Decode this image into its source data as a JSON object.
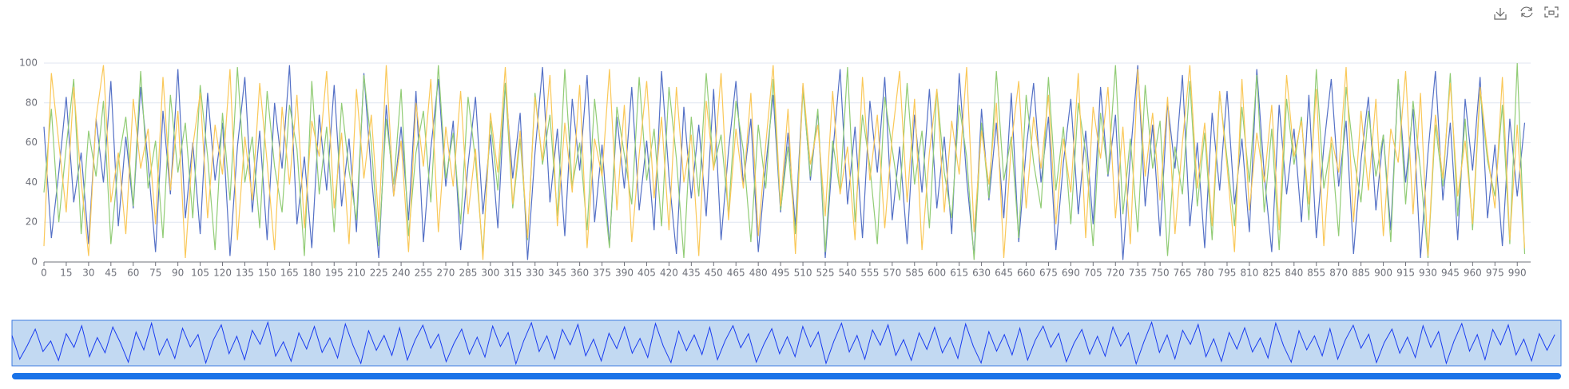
{
  "chart_data": {
    "type": "line",
    "xlim": [
      0,
      999
    ],
    "xticks": [
      0,
      15,
      30,
      45,
      60,
      75,
      90,
      105,
      120,
      135,
      150,
      165,
      180,
      195,
      210,
      225,
      240,
      255,
      270,
      285,
      300,
      315,
      330,
      345,
      360,
      375,
      390,
      405,
      420,
      435,
      450,
      465,
      480,
      495,
      510,
      525,
      540,
      555,
      570,
      585,
      600,
      615,
      630,
      645,
      660,
      675,
      690,
      705,
      720,
      735,
      750,
      765,
      780,
      795,
      810,
      825,
      840,
      855,
      870,
      885,
      900,
      915,
      930,
      945,
      960,
      975,
      990
    ],
    "ylim": [
      0,
      100
    ],
    "yticks": [
      0,
      20,
      40,
      60,
      80,
      100
    ],
    "grid": true,
    "x": [
      0,
      5,
      10,
      15,
      20,
      25,
      30,
      35,
      40,
      45,
      50,
      55,
      60,
      65,
      70,
      75,
      80,
      85,
      90,
      95,
      100,
      105,
      110,
      115,
      120,
      125,
      130,
      135,
      140,
      145,
      150,
      155,
      160,
      165,
      170,
      175,
      180,
      185,
      190,
      195,
      200,
      205,
      210,
      215,
      220,
      225,
      230,
      235,
      240,
      245,
      250,
      255,
      260,
      265,
      270,
      275,
      280,
      285,
      290,
      295,
      300,
      305,
      310,
      315,
      320,
      325,
      330,
      335,
      340,
      345,
      350,
      355,
      360,
      365,
      370,
      375,
      380,
      385,
      390,
      395,
      400,
      405,
      410,
      415,
      420,
      425,
      430,
      435,
      440,
      445,
      450,
      455,
      460,
      465,
      470,
      475,
      480,
      485,
      490,
      495,
      500,
      505,
      510,
      515,
      520,
      525,
      530,
      535,
      540,
      545,
      550,
      555,
      560,
      565,
      570,
      575,
      580,
      585,
      590,
      595,
      600,
      605,
      610,
      615,
      620,
      625,
      630,
      635,
      640,
      645,
      650,
      655,
      660,
      665,
      670,
      675,
      680,
      685,
      690,
      695,
      700,
      705,
      710,
      715,
      720,
      725,
      730,
      735,
      740,
      745,
      750,
      755,
      760,
      765,
      770,
      775,
      780,
      785,
      790,
      795,
      800,
      805,
      810,
      815,
      820,
      825,
      830,
      835,
      840,
      845,
      850,
      855,
      860,
      865,
      870,
      875,
      880,
      885,
      890,
      895,
      900,
      905,
      910,
      915,
      920,
      925,
      930,
      935,
      940,
      945,
      950,
      955,
      960,
      965,
      970,
      975,
      980,
      985,
      990,
      995
    ],
    "series": [
      {
        "color": "#5470c6",
        "values": [
          68,
          12,
          45,
          83,
          30,
          55,
          9,
          72,
          40,
          91,
          18,
          63,
          27,
          88,
          50,
          5,
          76,
          34,
          97,
          22,
          60,
          14,
          85,
          41,
          70,
          3,
          58,
          93,
          25,
          66,
          11,
          80,
          47,
          99,
          19,
          53,
          7,
          74,
          36,
          89,
          28,
          62,
          15,
          95,
          44,
          2,
          79,
          33,
          68,
          21,
          86,
          10,
          57,
          92,
          38,
          71,
          6,
          49,
          83,
          24,
          64,
          17,
          90,
          42,
          75,
          1,
          55,
          98,
          30,
          67,
          13,
          82,
          46,
          94,
          20,
          59,
          8,
          73,
          37,
          88,
          26,
          61,
          16,
          96,
          43,
          4,
          78,
          32,
          69,
          23,
          87,
          11,
          56,
          91,
          39,
          72,
          5,
          48,
          84,
          25,
          65,
          18,
          89,
          41,
          76,
          2,
          54,
          97,
          29,
          68,
          12,
          81,
          45,
          93,
          21,
          58,
          9,
          74,
          35,
          87,
          27,
          63,
          14,
          95,
          42,
          3,
          77,
          31,
          70,
          22,
          85,
          10,
          57,
          90,
          40,
          73,
          6,
          50,
          82,
          24,
          66,
          19,
          88,
          43,
          74,
          1,
          53,
          99,
          28,
          69,
          13,
          80,
          47,
          94,
          18,
          60,
          7,
          75,
          36,
          86,
          29,
          62,
          15,
          97,
          44,
          5,
          79,
          34,
          67,
          20,
          84,
          12,
          58,
          92,
          38,
          71,
          4,
          51,
          83,
          26,
          64,
          16,
          91,
          40,
          77,
          2,
          55,
          96,
          31,
          70,
          11,
          82,
          46,
          93,
          22,
          59,
          8,
          72,
          33,
          70
        ]
      },
      {
        "color": "#91cc75",
        "values": [
          35,
          77,
          20,
          58,
          92,
          14,
          66,
          43,
          81,
          9,
          50,
          73,
          28,
          96,
          37,
          61,
          12,
          84,
          45,
          70,
          22,
          89,
          53,
          6,
          75,
          31,
          98,
          40,
          63,
          17,
          86,
          48,
          25,
          79,
          57,
          3,
          91,
          34,
          68,
          15,
          80,
          46,
          21,
          94,
          59,
          8,
          72,
          39,
          87,
          13,
          55,
          76,
          30,
          99,
          42,
          65,
          19,
          83,
          51,
          4,
          71,
          36,
          90,
          27,
          62,
          11,
          85,
          49,
          74,
          23,
          97,
          38,
          60,
          16,
          82,
          44,
          7,
          78,
          54,
          29,
          93,
          41,
          67,
          18,
          88,
          52,
          2,
          73,
          33,
          95,
          47,
          64,
          24,
          81,
          56,
          10,
          69,
          37,
          92,
          26,
          58,
          14,
          86,
          43,
          77,
          5,
          61,
          35,
          98,
          20,
          74,
          48,
          9,
          83,
          57,
          31,
          90,
          39,
          66,
          17,
          87,
          45,
          22,
          79,
          53,
          1,
          70,
          32,
          96,
          41,
          63,
          12,
          84,
          50,
          27,
          93,
          36,
          68,
          19,
          80,
          55,
          8,
          75,
          44,
          99,
          24,
          62,
          15,
          89,
          47,
          71,
          3,
          58,
          34,
          91,
          28,
          65,
          11,
          85,
          52,
          18,
          78,
          40,
          94,
          25,
          67,
          6,
          82,
          49,
          73,
          21,
          97,
          37,
          60,
          13,
          88,
          54,
          30,
          76,
          43,
          64,
          10,
          92,
          29,
          81,
          46,
          2,
          69,
          38,
          95,
          23,
          72,
          16,
          86,
          51,
          33,
          79,
          9,
          100,
          4
        ]
      },
      {
        "color": "#fac858",
        "values": [
          8,
          95,
          60,
          25,
          88,
          41,
          3,
          72,
          99,
          30,
          55,
          14,
          82,
          47,
          67,
          19,
          93,
          36,
          76,
          2,
          58,
          85,
          22,
          69,
          44,
          97,
          11,
          63,
          31,
          90,
          50,
          6,
          78,
          39,
          84,
          17,
          71,
          53,
          96,
          27,
          65,
          9,
          87,
          42,
          74,
          20,
          99,
          33,
          61,
          5,
          80,
          48,
          92,
          15,
          68,
          38,
          86,
          24,
          57,
          1,
          75,
          45,
          98,
          29,
          66,
          12,
          83,
          51,
          94,
          18,
          70,
          35,
          89,
          7,
          62,
          43,
          97,
          26,
          79,
          10,
          54,
          91,
          32,
          73,
          16,
          88,
          40,
          64,
          3,
          81,
          46,
          95,
          21,
          67,
          37,
          85,
          13,
          59,
          99,
          28,
          77,
          4,
          90,
          49,
          69,
          23,
          86,
          34,
          58,
          11,
          93,
          41,
          74,
          17,
          63,
          96,
          30,
          82,
          6,
          55,
          87,
          25,
          71,
          44,
          98,
          15,
          66,
          39,
          80,
          2,
          59,
          91,
          27,
          73,
          47,
          84,
          19,
          62,
          35,
          95,
          12,
          78,
          52,
          88,
          22,
          68,
          9,
          97,
          43,
          75,
          31,
          83,
          14,
          60,
          99,
          37,
          70,
          18,
          86,
          48,
          5,
          92,
          26,
          65,
          40,
          79,
          16,
          94,
          53,
          71,
          29,
          87,
          8,
          63,
          45,
          98,
          20,
          76,
          36,
          82,
          13,
          67,
          50,
          96,
          24,
          85,
          3,
          74,
          42,
          90,
          33,
          61,
          19,
          88,
          55,
          27,
          93,
          11,
          69,
          7
        ]
      }
    ]
  }
}
